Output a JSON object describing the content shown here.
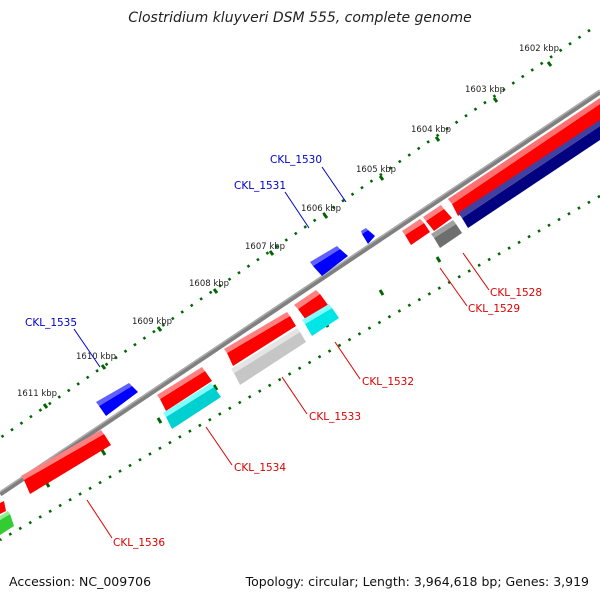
{
  "title": "Clostridium kluyveri DSM 555, complete genome",
  "footer": {
    "accession": "Accession: NC_009706",
    "summary": "Topology: circular; Length: 3,964,618 bp; Genes: 3,919"
  },
  "ticks": [
    "1602 kbp",
    "1603 kbp",
    "1604 kbp",
    "1605 kbp",
    "1606 kbp",
    "1607 kbp",
    "1608 kbp",
    "1609 kbp",
    "1610 kbp",
    "1611 kbp"
  ],
  "forward_labels": [
    "CKL_1530",
    "CKL_1531",
    "CKL_1535"
  ],
  "reverse_labels": [
    "CKL_1528",
    "CKL_1529",
    "CKL_1532",
    "CKL_1533",
    "CKL_1534",
    "CKL_1536"
  ],
  "colors": {
    "backbone": "#808080",
    "red": "#ff0000",
    "blue": "#0000ff",
    "navy": "#000080",
    "cyan": "#00e6e6",
    "gray": "#707070",
    "lightgray": "#c8c8c8",
    "green": "#33cc33",
    "tick": "#006600",
    "forward_label": "#0000cc",
    "reverse_label": "#dd0000"
  }
}
